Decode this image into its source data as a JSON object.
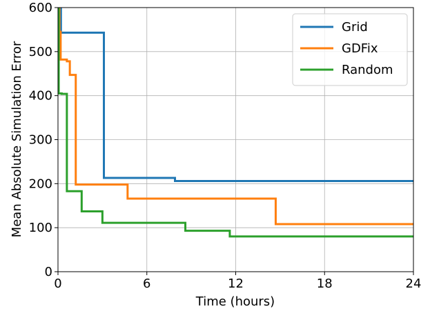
{
  "chart_data": {
    "type": "line",
    "xlabel": "Time (hours)",
    "ylabel": "Mean Absolute Simulation Error",
    "xlim": [
      0,
      24
    ],
    "ylim": [
      0,
      600
    ],
    "xticks": [
      0,
      6,
      12,
      18,
      24
    ],
    "yticks": [
      0,
      100,
      200,
      300,
      400,
      500,
      600
    ],
    "grid": true,
    "legend_position": "top-right",
    "series": [
      {
        "name": "Grid",
        "color": "#1f77b4",
        "points": [
          [
            0,
            630
          ],
          [
            0.2,
            630
          ],
          [
            0.2,
            543
          ],
          [
            3.1,
            543
          ],
          [
            3.1,
            213
          ],
          [
            7.9,
            213
          ],
          [
            7.9,
            206
          ],
          [
            24,
            206
          ]
        ]
      },
      {
        "name": "GDFix",
        "color": "#ff7f0e",
        "points": [
          [
            0,
            630
          ],
          [
            0.1,
            630
          ],
          [
            0.1,
            545
          ],
          [
            0.18,
            545
          ],
          [
            0.18,
            482
          ],
          [
            0.6,
            482
          ],
          [
            0.6,
            478
          ],
          [
            0.8,
            478
          ],
          [
            0.8,
            447
          ],
          [
            1.2,
            447
          ],
          [
            1.2,
            198
          ],
          [
            4.7,
            198
          ],
          [
            4.7,
            166
          ],
          [
            14.7,
            166
          ],
          [
            14.7,
            108
          ],
          [
            24,
            108
          ]
        ]
      },
      {
        "name": "Random",
        "color": "#2ca02c",
        "points": [
          [
            0,
            630
          ],
          [
            0.05,
            630
          ],
          [
            0.05,
            405
          ],
          [
            0.25,
            405
          ],
          [
            0.25,
            404
          ],
          [
            0.6,
            404
          ],
          [
            0.6,
            183
          ],
          [
            1.6,
            183
          ],
          [
            1.6,
            137
          ],
          [
            3.0,
            137
          ],
          [
            3.0,
            111
          ],
          [
            8.6,
            111
          ],
          [
            8.6,
            93
          ],
          [
            11.6,
            93
          ],
          [
            11.6,
            80
          ],
          [
            24,
            80
          ]
        ]
      }
    ]
  }
}
